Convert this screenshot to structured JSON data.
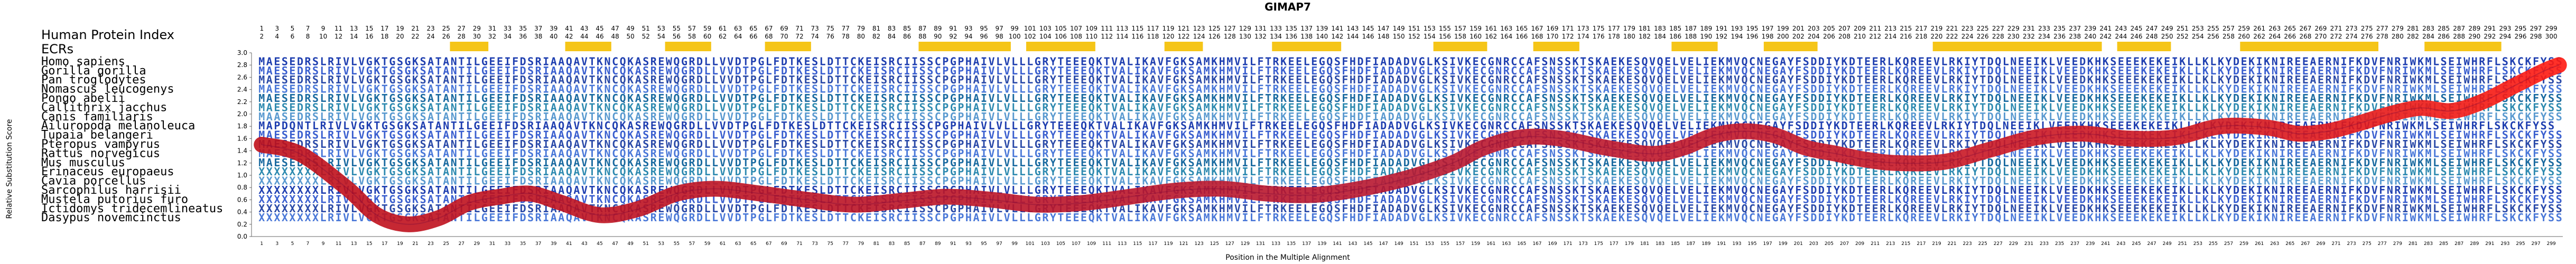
{
  "chart_data": {
    "type": "line",
    "title": "GIMAP7",
    "xlabel": "Position in the Multiple Alignment",
    "ylabel": "Relative Substitution Score",
    "xlim": [
      1,
      300
    ],
    "ylim": [
      0,
      3.0
    ],
    "yticks": [
      0,
      0.2,
      0.4,
      0.6,
      0.8,
      1.0,
      1.2,
      1.4,
      1.6,
      1.8,
      2.0,
      2.2,
      2.4,
      2.6,
      2.8,
      3.0
    ],
    "header_labels": [
      "Human Protein Index",
      "ECRs"
    ],
    "ecr_regions": [
      [
        26,
        30
      ],
      [
        41,
        46
      ],
      [
        54,
        59
      ],
      [
        67,
        72
      ],
      [
        87,
        98
      ],
      [
        101,
        109
      ],
      [
        119,
        123
      ],
      [
        133,
        141
      ],
      [
        154,
        160
      ],
      [
        167,
        172
      ],
      [
        185,
        190
      ],
      [
        197,
        203
      ],
      [
        219,
        240
      ],
      [
        243,
        249
      ],
      [
        259,
        276
      ],
      [
        283,
        292
      ]
    ],
    "species": [
      "Homo sapiens",
      "Gorilla gorilla",
      "Pan troglodytes",
      "Nomascus leucogenys",
      "Pongo abelii",
      "Callithrix jacchus",
      "Canis familiaris",
      "Ailuropoda melanoleuca",
      "Tupaia belangeri",
      "Pteropus vampyrus",
      "Rattus norvegicus",
      "Mus musculus",
      "Erinaceus europaeus",
      "Cavia porcellus",
      "Sarcophilus harrisii",
      "Mustela putorius furo",
      "Ictidomys tridecemlineatus",
      "Dasypus novemcinctus"
    ],
    "sequences": [
      "MAESEDRSLRIVLVGKTGSGKSATANTILGEEIFDSRIAAQAVTKNCQKASREWQGRDLLVVDTPGLFDTKESLDTTCKEISRCIISSCPGPHAIVLVLLLGRYTEEEQKTVALIKAVFGKSAMKHMVILFTRKEELEGQSFHDFIADADVGLKSIVKECGNRCCAFSNSSKTSKAEKESQVQELVELIEKMVQCNEGAYFSDDIYKDTEERLKQREEVLRKIYTDQLNEEIKLVEEDKHKSEEEKEKEIKLLKLKYDEKIKNIREEAERNIFKDVFNRIWKMLSEIWHRFLSKCKFYSS",
      "MAESEDRSLRIVLVGKTGSGKSATANTILGEEIFDSRIAAQAVTKNCQKASREWQGRDLLVVDTPGLFDTKESLDTTCKEISRCIISSCPGPHAIVLVLLLGRYTEEEQKTVALIKAVFGKSAMKHMVILFTRKEELEGQSFHDFIADADVGLKSIVKECGNRCCAFSNSSKTSKAEKESQVQELVELIEKMVQCNEGAYFSDDIYKDTEERLKQREEVLRKIYTDQLNEEIKLVEEDKHKSEEEKEKEIKLLKLKYDEKIKNIREEAERNIFKDVFNRIWKMLSEIWHRFLSKCKFYSS",
      "MAESEDRSLRIVLVGKTGSGKSATANTILGEEIFDSRIAAQAVTKNCQKASREWQGRDLLVVDTPGLFDTKESLDTTCKEISRCIISSCPGPHAIVLVLLLGRYTEEEQKTVALIKAVFGKSAMKHMVILFTRKEELEGQSFHDFIADADVGLKSIVKECGNRCCAFSNSSKTSKAEKESQVQELVELIEKMVQCNEGAYFSDDIYKDTEERLKQREEVLRKIYTDQLNEEIKLVEEDKHKSEEEKEKEIKLLKLKYDEKIKNIREEAERNIFKDVFNRIWKMLSEIWHRFLSKCKFYSS",
      "MAESEDRSLRIVLVGKTGSGKSATANTILGEEIFDSRIAAQAVTKNCQKASREWQGRDLLVVDTPGLFDTKESLDTTCKEISRCIISSCPGPHAIVLVLLLGRYTEEEQKTVALIKAVFGKSAMKHMVILFTRKEELEGQSFHDFIADADVGLKSIVKECGNRCCAFSNSSKTSKAEKESQVQELVELIEKMVQCNEGAYFSDDIYKDTEERLKQREEVLRKIYTDQLNEEIKLVEEDKHKSEEEKEKEIKLLKLKYDEKIKNIREEAERNIFKDVFNRIWKMLSEIWHRFLSKCKFYSS",
      "MAESEDRSLRIVLVGKTGSGKSATANTILGEEIFDSRIAAQAVTKNCQKASREWQGRDLLVVDTPGLFDTKESLDTTCKEISRCIISSCPGPHAIVLVLLLGRYTEEEQKTVALIKAVFGKSAMKHMVILFTRKEELEGQSFHDFIADADVGLKSIVKECGNRCCAFSNSSKTSKAEKESQVQELVELIEKMVQCNEGAYFSDDIYKDTEERLKQREEVLRKIYTDQLNEEIKLVEEDKHKSEEEKEKEIKLLKLKYDEKIKNIREEAERNIFKDVFNRIWKMLSEIWHRFLSKCKFYSS",
      "MAESEDRSLRIVLVGKTGSGKSATANTILGEEIFDSRIAAQAVTKNCQKASREWQGRDLLVVDTPGLFDTKESLDTTCKEISRCIISSCPGPHAIVLVLLLGRYTEEEQKTVALIKAVFGKSAMKHMVILFTRKEELEGQSFHDFIADADVGLKSIVKECGNRCCAFSNSSKTSKAEKESQVQELVELIEKMVQCNEGAYFSDDIYKDTEERLKQREEVLRKIYTDQLNEEIKLVEEDKHKSEEEKEKEIKLLKLKYDEKIKNIREEAERNIFKDVFNRIWKMLSEIWHRFLSKCKFYSS",
      "MAASEDRSLRIVLVGKTGSGKSATANTILGEEIFDSRIAAQAVTKNCQKASREWQGRDLLVVDTPGLFDTKESLDTTCKEISRCIISSCPGPHAIVLVLLLGRYTEEEQKTVALIKAVFGKSAMKHMVILFTRKEELEGQSFHDFIADADVGLKSIVKECGNRCCAFSNSSKTSKAEKESQVQELVELIEKMVQCNEGAYFSDDIYKDTEERLKQREEVLRKIYTDQLNEEIKLVEEDKHKSEEEKEKEIKLLKLKYDEKIKNIREEAERNIFKDVFNRIWKMLSEIWHRFLSKCKFYSS",
      "MAPDQNTLRIVLVGKTGSGKSATANTILGEEIFDSRIAAQAVTKNCQKASREWQGRDLLVVDTPGLFDTKESLDTTCKEISRCIISSCPGPHAIVLVLLLGRYTEEEQKTVALIKAVFGKSAMKHMVILFTRKEELEGQSFHDFIADADVGLKSIVKECGNRCCAFSNSSKTSKAEKESQVQELVELIEKMVQCNEGAYFSDDIYKDTEERLKQREEVLRKIYTDQLNEEIKLVEEDKHKSEEEKEKEIKLLKLKYDEKIKNIREEAERNIFKDVFNRIWKMLSEIWHRFLSKCKFYSS",
      "MAESEDRSLRIVLVGKTGSGKSATANTILGEEIFDSRIAAQAVTKNCQKASREWQGRDLLVVDTPGLFDTKESLDTTCKEISRCIISSCPGPHAIVLVLLLGRYTEEEQKTVALIKAVFGKSAMKHMVILFTRKEELEGQSFHDFIADADVGLKSIVKECGNRCCAFSNSSKTSKAEKESQVQELVELIEKMVQCNEGAYFSDDIYKDTEERLKQREEVLRKIYTDQLNEEIKLVEEDKHKSEEEKEKEIKLLKLKYDEKIKNIREEAERNIFKDVFNRIWKMLSEIWHRFLSKCKFYSS",
      "MAESEDRSLRIVLVGKTGSGKSATANTILGEEIFDSRIAAQAVTKNCQKASREWQGRDLLVVDTPGLFDTKESLDTTCKEISRCIISSCPGPHAIVLVLLLGRYTEEEQKTVALIKAVFGKSAMKHMVILFTRKEELEGQSFHDFIADADVGLKSIVKECGNRCCAFSNSSKTSKAEKESQVQELVELIEKMVQCNEGAYFSDDIYKDTEERLKQREEVLRKIYTDQLNEEIKLVEEDKHKSEEEKEKEIKLLKLKYDEKIKNIREEAERNIFKDVFNRIWKMLSEIWHRFLSKCKFYSS",
      "MAESEDRSLRIVLVGKTGSGKSATANTILGEEIFDSRIAAQAVTKNCQKASREWQGRDLLVVDTPGLFDTKESLDTTCKEISRCIISSCPGPHAIVLVLLLGRYTEEEQKTVALIKAVFGKSAMKHMVILFTRKEELEGQSFHDFIADADVGLKSIVKECGNRCCAFSNSSKTSKAEKESQVQELVELIEKMVQCNEGAYFSDDIYKDTEERLKQREEVLRKIYTDQLNEEIKLVEEDKHKSEEEKEKEIKLLKLKYDEKIKNIREEAERNIFKDVFNRIWKMLSEIWHRFLSKCKFYSS",
      "MAESEDRSLRIVLVGKTGSGKSATANTILGEEIFDSRIAAQAVTKNCQKASREWQGRDLLVVDTPGLFDTKESLDTTCKEISRCIISSCPGPHAIVLVLLLGRYTEEEQKTVALIKAVFGKSAMKHMVILFTRKEELEGQSFHDFIADADVGLKSIVKECGNRCCAFSNSSKTSKAEKESQVQELVELIEKMVQCNEGAYFSDDIYKDTEERLKQREEVLRKIYTDQLNEEIKLVEEDKHKSEEEKEKEIKLLKLKYDEKIKNIREEAERNIFKDVFNRIWKMLSEIWHRFLSKCKFYSS",
      "XXXXXXXXLRIVLVGKTGSGKSATANTILGEEIFDSRIAAQAVTKNCQKASREWQGRDLLVVDTPGLFDTKESLDTTCKEISRCIISSCPGPHAIVLVLLLGRYTEEEQKTVALIKAVFGKSAMKHMVILFTRKEELEGQSFHDFIADADVGLKSIVKECGNRCCAFSNSSKTSKAEKESQVQELVELIEKMVQCNEGAYFSDDIYKDTEERLKQREEVLRKIYTDQLNEEIKLVEEDKHKSEEEKEKEIKLLKLKYDEKIKNIREEAERNIFKDVFNRIWKMLSEIWHRFLSKCKFYSS",
      "XXXXXXXXLRIVLVGKTGSGKSATANTILGEEIFDSRIAAQAVTKNCQKASREWQGRDLLVVDTPGLFDTKESLDTTCKEISRCIISSCPGPHAIVLVLLLGRYTEEEQKTVALIKAVFGKSAMKHMVILFTRKEELEGQSFHDFIADADVGLKSIVKECGNRCCAFSNSSKTSKAEKESQVQELVELIEKMVQCNEGAYFSDDIYKDTEERLKQREEVLRKIYTDQLNEEIKLVEEDKHKSEEEKEKEIKLLKLKYDEKIKNIREEAERNIFKDVFNRIWKMLSEIWHRFLSKCKFYSS",
      "XXXXXXXXLRIVLVGKTGSGKSATANTILGEEIFDSRIAAQAVTKNCQKASREWQGRDLLVVDTPGLFDTKESLDTTCKEISRCIISSCPGPHAIVLVLLLGRYTEEEQKTVALIKAVFGKSAMKHMVILFTRKEELEGQSFHDFIADADVGLKSIVKECGNRCCAFSNSSKTSKAEKESQVQELVELIEKMVQCNEGAYFSDDIYKDTEERLKQREEVLRKIYTDQLNEEIKLVEEDKHKSEEEKEKEIKLLKLKYDEKIKNIREEAERNIFKDVFNRIWKMLSEIWHRFLSKCKFYSS",
      "XXXXXXXXLRIVLVGKTGSGKSATANTILGEEIFDSRIAAQAVTKNCQKASREWQGRDLLVVDTPGLFDTKESLDTTCKEISRCIISSCPGPHAIVLVLLLGRYTEEEQKTVALIKAVFGKSAMKHMVILFTRKEELEGQSFHDFIADADVGLKSIVKECGNRCCAFSNSSKTSKAEKESQVQELVELIEKMVQCNEGAYFSDDIYKDTEERLKQREEVLRKIYTDQLNEEIKLVEEDKHKSEEEKEKEIKLLKLKYDEKIKNIREEAERNIFKDVFNRIWKMLSEIWHRFLSKCKFYSS",
      "XXXXXXXXLRIVLVGKTGSGKSATANTILGEEIFDSRIAAQAVTKNCQKASREWQGRDLLVVDTPGLFDTKESLDTTCKEISRCIISSCPGPHAIVLVLLLGRYTEEEQKTVALIKAVFGKSAMKHMVILFTRKEELEGQSFHDFIADADVGLKSIVKECGNRCCAFSNSSKTSKAEKESQVQELVELIEKMVQCNEGAYFSDDIYKDTEERLKQREEVLRKIYTDQLNEEIKLVEEDKHKSEEEKEKEIKLLKLKYDEKIKNIREEAERNIFKDVFNRIWKMLSEIWHRFLSKCKFYSS",
      "XXXXXXXXLRIVLVGKTGSGKSATANTILGEEIFDSRIAAQAVTKNCQKASREWQGRDLLVVDTPGLFDTKESLDTTCKEISRCIISSCPGPHAIVLVLLLGRYTEEEQKTVALIKAVFGKSAMKHMVILFTRKEELEGQSFHDFIADADVGLKSIVKECGNRCCAFSNSSKTSKAEKESQVQELVELIEKMVQCNEGAYFSDDIYKDTEERLKQREEVLRKIYTDQLNEEIKLVEEDKHKSEEEKEKEIKLLKLKYDEKIKNIREEAERNIFKDVFNRIWKMLSEIWHRFLSKCKFYSS"
    ],
    "score_points": [
      [
        1,
        1.5
      ],
      [
        6,
        1.35
      ],
      [
        12,
        0.8
      ],
      [
        16,
        0.35
      ],
      [
        20,
        0.2
      ],
      [
        24,
        0.3
      ],
      [
        28,
        0.55
      ],
      [
        32,
        0.65
      ],
      [
        36,
        0.7
      ],
      [
        40,
        0.55
      ],
      [
        45,
        0.35
      ],
      [
        50,
        0.45
      ],
      [
        55,
        0.7
      ],
      [
        60,
        0.78
      ],
      [
        66,
        0.7
      ],
      [
        72,
        0.6
      ],
      [
        78,
        0.52
      ],
      [
        84,
        0.58
      ],
      [
        90,
        0.65
      ],
      [
        96,
        0.6
      ],
      [
        102,
        0.52
      ],
      [
        108,
        0.55
      ],
      [
        114,
        0.65
      ],
      [
        120,
        0.75
      ],
      [
        126,
        0.78
      ],
      [
        132,
        0.7
      ],
      [
        138,
        0.68
      ],
      [
        144,
        0.78
      ],
      [
        150,
        0.95
      ],
      [
        156,
        1.2
      ],
      [
        160,
        1.45
      ],
      [
        165,
        1.62
      ],
      [
        170,
        1.6
      ],
      [
        176,
        1.45
      ],
      [
        182,
        1.35
      ],
      [
        186,
        1.45
      ],
      [
        190,
        1.65
      ],
      [
        194,
        1.72
      ],
      [
        198,
        1.65
      ],
      [
        202,
        1.45
      ],
      [
        206,
        1.35
      ],
      [
        210,
        1.25
      ],
      [
        214,
        1.2
      ],
      [
        220,
        1.22
      ],
      [
        226,
        1.42
      ],
      [
        232,
        1.62
      ],
      [
        238,
        1.68
      ],
      [
        244,
        1.6
      ],
      [
        250,
        1.62
      ],
      [
        256,
        1.8
      ],
      [
        262,
        1.78
      ],
      [
        266,
        1.68
      ],
      [
        270,
        1.72
      ],
      [
        274,
        1.85
      ],
      [
        278,
        2.0
      ],
      [
        282,
        2.1
      ],
      [
        286,
        2.05
      ],
      [
        290,
        2.2
      ],
      [
        294,
        2.45
      ],
      [
        298,
        2.7
      ],
      [
        300,
        2.8
      ]
    ]
  }
}
